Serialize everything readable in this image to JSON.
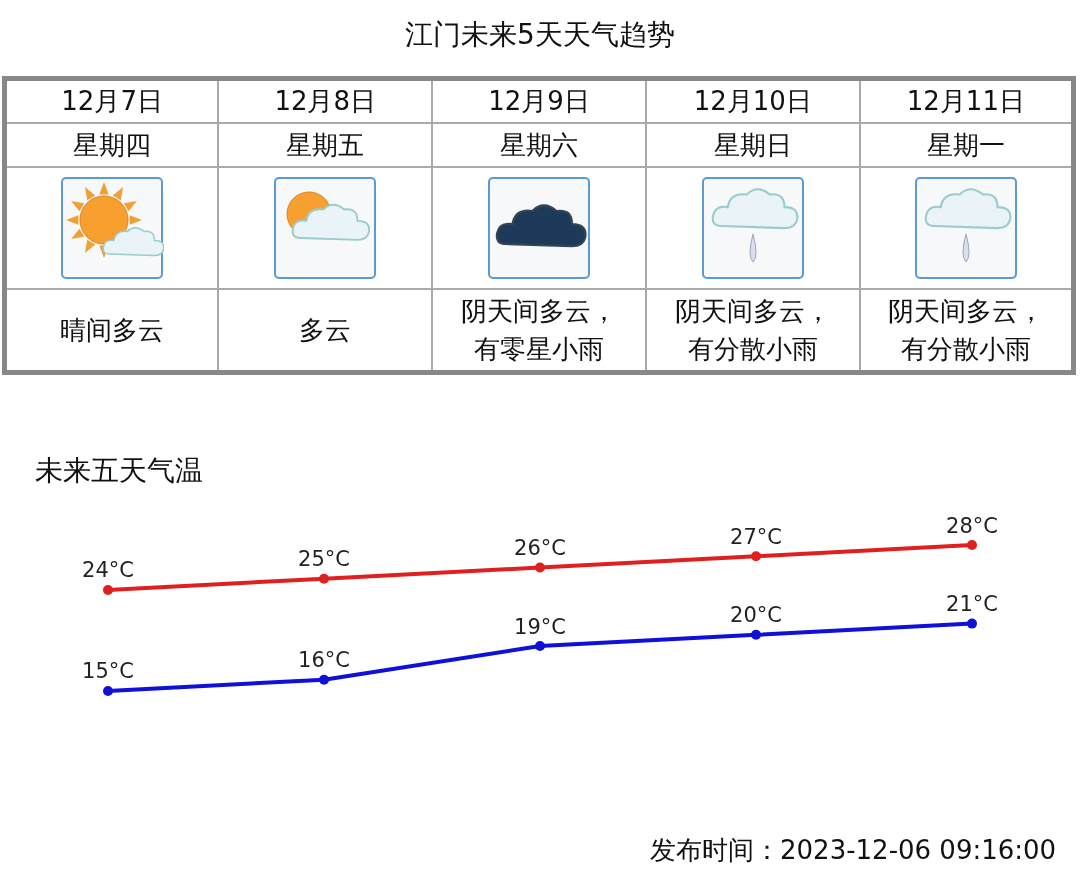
{
  "chart_data": [
    {
      "type": "other",
      "title": "江门未来5天天气趋势",
      "cell_labels": [
        [
          "12月7日",
          "12月8日",
          "12月9日",
          "12月10日",
          "12月11日"
        ],
        [
          "星期四",
          "星期五",
          "星期六",
          "星期日",
          "星期一"
        ],
        [
          "晴间多云",
          "多云",
          "阴天间多云，有零星小雨",
          "阴天间多云，有分散小雨",
          "阴天间多云，有分散小雨"
        ]
      ]
    },
    {
      "type": "line",
      "title": "未来五天气温",
      "categories": [
        null,
        null,
        null,
        null,
        null
      ],
      "series": [
        {
          "color": "#e02020",
          "values": [
            24,
            25,
            26,
            27,
            28
          ],
          "value_labels": [
            "24°C",
            "25°C",
            "26°C",
            "27°C",
            "28°C"
          ]
        },
        {
          "color": "#1010d8",
          "values": [
            15,
            16,
            19,
            20,
            21
          ],
          "value_labels": [
            "15°C",
            "16°C",
            "19°C",
            "20°C",
            "21°C"
          ]
        }
      ],
      "marker": "circle",
      "line_style": "solid",
      "grid": false,
      "annotations": [
        "发布时间：2023-12-06 09:16:00"
      ]
    }
  ]
}
